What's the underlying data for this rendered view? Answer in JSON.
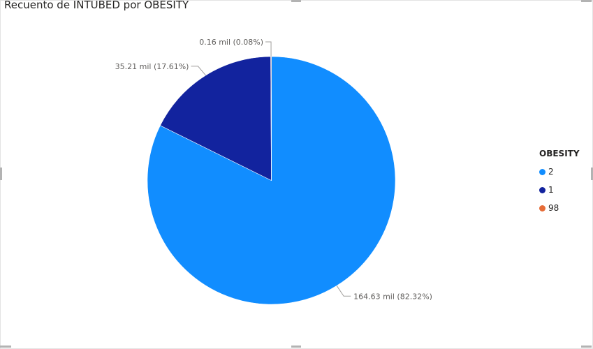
{
  "chart_data": {
    "type": "pie",
    "title": "Recuento de INTUBED por OBESITY",
    "legend_title": "OBESITY",
    "legend_position": "right",
    "slices": [
      {
        "category": "2",
        "value": 164.63,
        "percent": 82.32,
        "label": "164.63 mil (82.32%)",
        "color": "#118DFF"
      },
      {
        "category": "1",
        "value": 35.21,
        "percent": 17.61,
        "label": "35.21 mil (17.61%)",
        "color": "#12239E"
      },
      {
        "category": "98",
        "value": 0.16,
        "percent": 0.08,
        "label": "0.16 mil (0.08%)",
        "color": "#E66C37"
      }
    ]
  }
}
